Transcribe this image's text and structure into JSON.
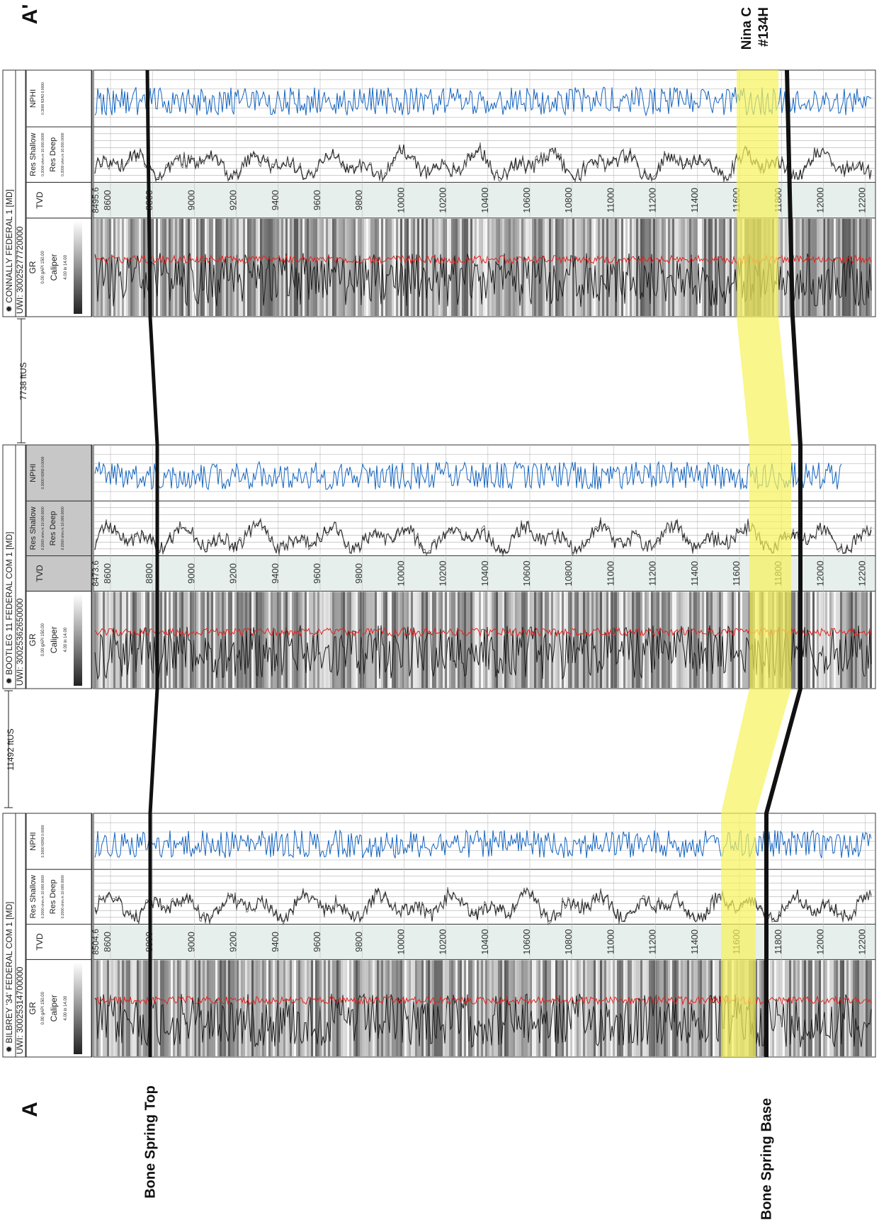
{
  "section": {
    "end_left": "A",
    "end_right": "A'",
    "right_well_label_line1": "Nina C",
    "right_well_label_line2": "#134H",
    "markers": {
      "top": "Bone Spring Top",
      "base": "Bone Spring Base"
    },
    "spacing": [
      "11492 ftUS",
      "7738 ftUS"
    ]
  },
  "track_names": {
    "gr": "GR",
    "caliper": "Caliper",
    "tvd": "TVD",
    "res_shallow": "Res Shallow",
    "res_deep": "Res Deep",
    "nphi": "NPHI"
  },
  "scales": {
    "gr_left": "0.00",
    "gr_unit": "gAPI",
    "gr_right": "150.00",
    "cal_left": "4.00",
    "cal_unit": "in",
    "cal_right": "14.00",
    "gr_shade": "GR",
    "res_range": "0.2000 ohm.m 10.000.0000",
    "nphi_range": "0.3000 ft3/ft3 0.0000"
  },
  "wells": [
    {
      "name": "BILBREY '34' FEDERAL COM 1 [MD]",
      "uwi": "UWI: 30025314700000",
      "top_depth": "8504.6",
      "depths": [
        "8600",
        "8800",
        "9000",
        "9200",
        "9400",
        "9600",
        "9800",
        "10000",
        "10200",
        "10400",
        "10600",
        "10800",
        "11000",
        "11200",
        "11400",
        "11600",
        "11800",
        "12000",
        "12200"
      ]
    },
    {
      "name": "BOOTLEG 11 FEDERAL COM 1 [MD]",
      "uwi": "UWI: 30025362650000",
      "top_depth": "8473.6",
      "depths": [
        "8600",
        "8800",
        "9000",
        "9200",
        "9400",
        "9600",
        "9800",
        "10000",
        "10200",
        "10400",
        "10600",
        "10800",
        "11000",
        "11200",
        "11400",
        "11600",
        "11800",
        "12000",
        "12200"
      ]
    },
    {
      "name": "CONNALLY FEDERAL 1 [MD]",
      "uwi": "UWI: 30025277720000",
      "top_depth": "8495.6",
      "depths": [
        "8600",
        "8800",
        "9000",
        "9200",
        "9400",
        "9600",
        "9800",
        "10000",
        "10200",
        "10400",
        "10600",
        "10800",
        "11000",
        "11200",
        "11400",
        "11600",
        "11800",
        "12000",
        "12200"
      ]
    }
  ],
  "colors": {
    "gr_curve": "#1a1a1a",
    "caliper_curve": "#e0201c",
    "resistivity": "#1a1a1a",
    "nphi_curve": "#1565c0",
    "zone_fill": "#f6f25a",
    "correlation_line": "#111111"
  }
}
